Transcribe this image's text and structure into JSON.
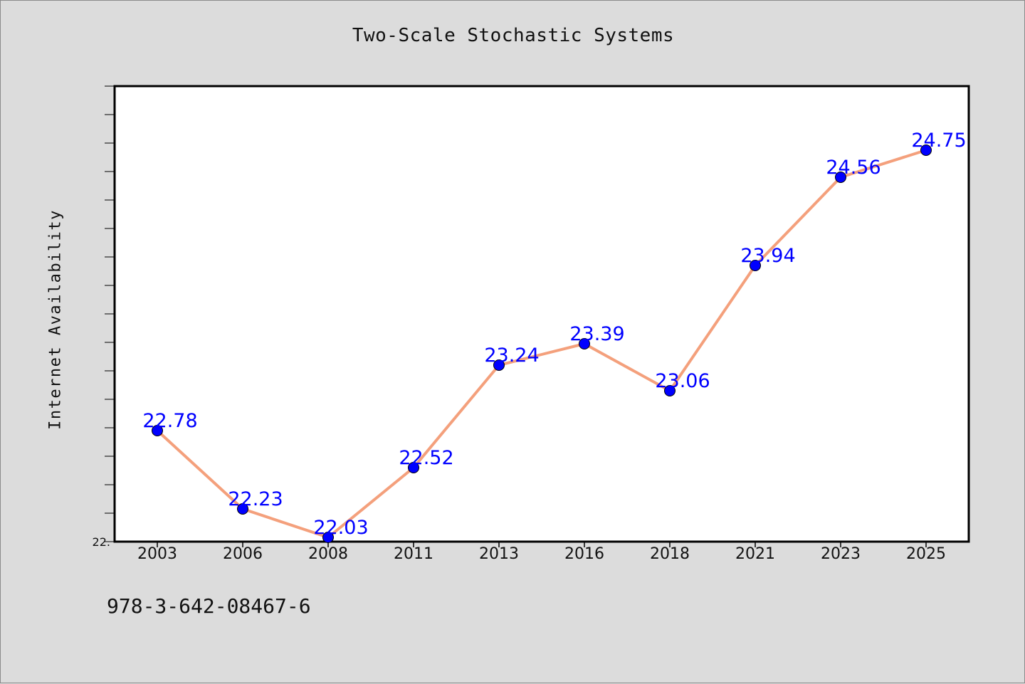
{
  "chart_data": {
    "type": "line",
    "title": "Two-Scale Stochastic Systems",
    "xlabel": "",
    "ylabel": "Internet Availability",
    "categories": [
      "2003",
      "2006",
      "2008",
      "2011",
      "2013",
      "2016",
      "2018",
      "2021",
      "2023",
      "2025"
    ],
    "series": [
      {
        "values": [
          22.78,
          22.23,
          22.03,
          22.52,
          23.24,
          23.39,
          23.06,
          23.94,
          24.56,
          24.75
        ],
        "labels": [
          "22.78",
          "22.23",
          "22.03",
          "22.52",
          "23.24",
          "23.39",
          "23.06",
          "23.94",
          "24.56",
          "24.75"
        ],
        "line_color": "#f4a07c",
        "marker_color": "#0000ff"
      }
    ],
    "ylim": [
      22.0,
      25.2
    ],
    "y_tick_labels": [
      "22."
    ],
    "y_minor_tick_step": 0.2,
    "grid": false,
    "legend": "none",
    "label_color": "#0000ff",
    "plot_background": "#ffffff",
    "figure_background": "#dcdcdc"
  },
  "footer": {
    "code": "978-3-642-08467-6"
  }
}
